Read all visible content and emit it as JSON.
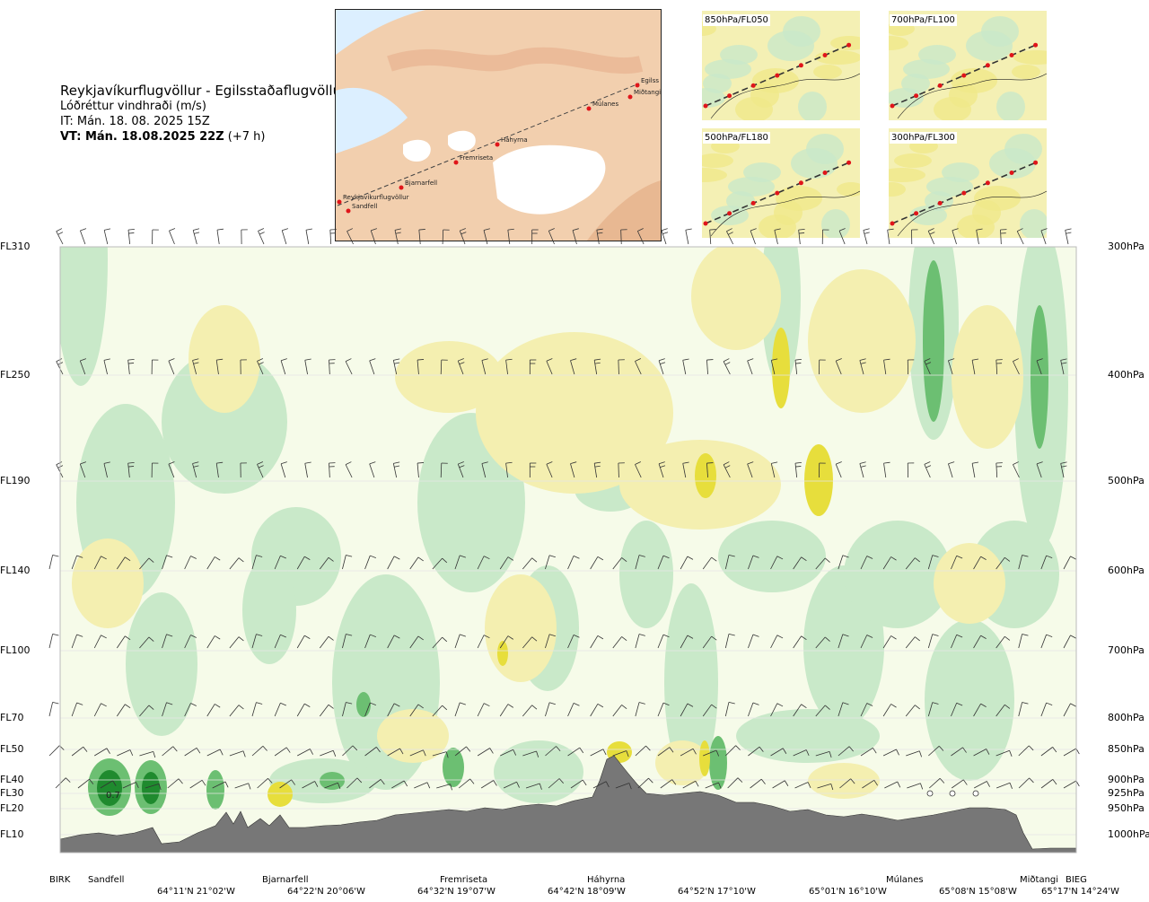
{
  "title": {
    "route": "Reykjavíkurflugvöllur - Egilsstaðaflugvöllur",
    "variable": "Lóðréttur vindhraði (m/s)",
    "issue_time": "IT: Mán. 18. 08. 2025 15Z",
    "valid_time": "VT: Mán. 18.08.2025 22Z",
    "lead": "(+7 h)"
  },
  "map": {
    "points": [
      "Reykjavíkurflugvöllur",
      "Sandfell",
      "Bjarnarfell",
      "Fremriseta",
      "Háhyrna",
      "Múlanes",
      "Miðtangi",
      "Egilss"
    ]
  },
  "panels": [
    "850hPa/FL050",
    "700hPa/FL100",
    "500hPa/FL180",
    "300hPa/FL300"
  ],
  "chart_data": {
    "type": "heatmap",
    "title": "Lóðréttur vindhraði (m/s)",
    "y_left_levels": [
      "FL310",
      "FL250",
      "FL190",
      "FL140",
      "FL100",
      "FL70",
      "FL50",
      "FL40",
      "FL30",
      "FL20",
      "FL10"
    ],
    "y_right_levels": [
      "300hPa",
      "400hPa",
      "500hPa",
      "600hPa",
      "700hPa",
      "800hPa",
      "850hPa",
      "900hPa",
      "925hPa",
      "950hPa",
      "1000hPa"
    ],
    "x_locations": [
      "BIRK",
      "Sandfell",
      "Bjarnarfell",
      "Fremriseta",
      "Háhyrna",
      "Múlanes",
      "Miðtangi",
      "BIEG"
    ],
    "x_coordinates": [
      "64°11'N 21°02'W",
      "64°22'N 20°06'W",
      "64°32'N 19°07'W",
      "64°42'N 18°09'W",
      "64°52'N 17°10'W",
      "65°01'N 16°10'W",
      "65°08'N 15°08'W",
      "65°17'N 14°24'W"
    ],
    "annotations": [
      "0.7"
    ],
    "colors": {
      "strong_up": "#1f8a2e",
      "up": "#6cbf72",
      "weak_up": "#c9e9c9",
      "neutral": "#f6fbe9",
      "weak_down": "#f4efb0",
      "down": "#e7de3c",
      "terrain": "#777777"
    }
  }
}
